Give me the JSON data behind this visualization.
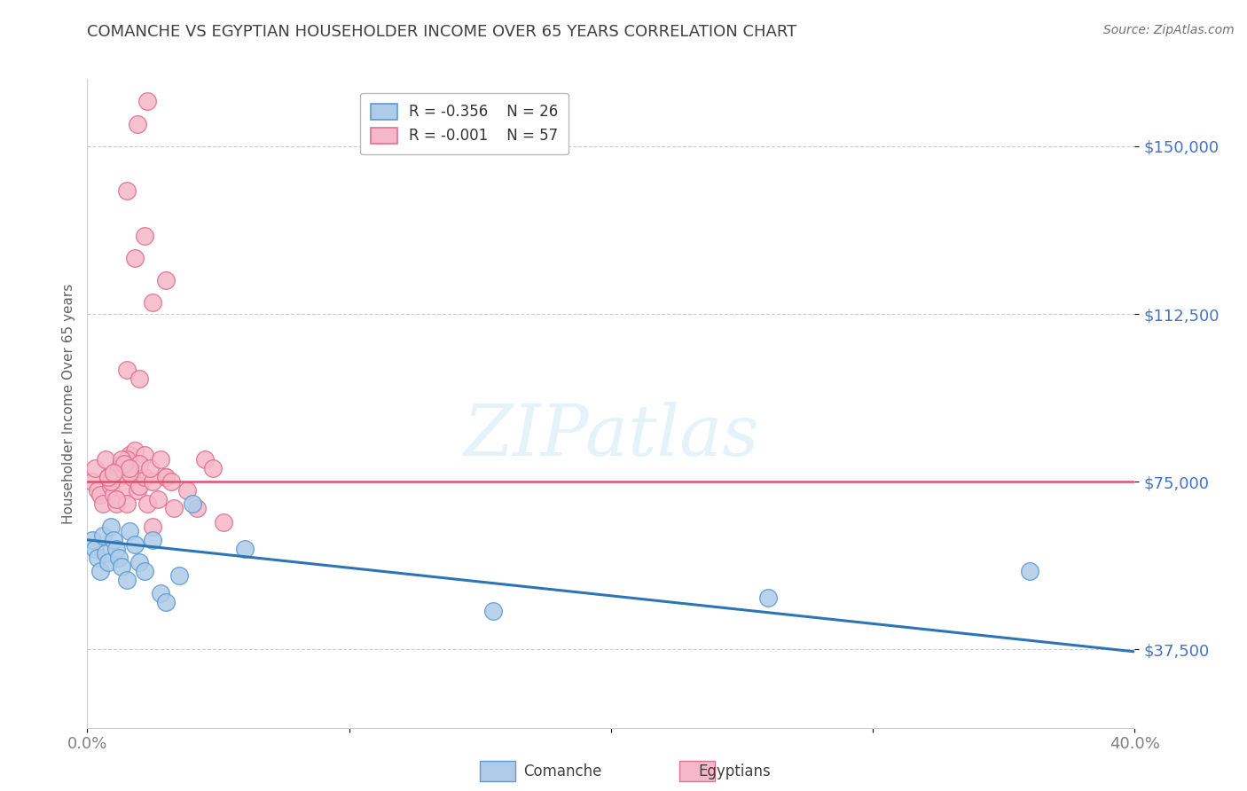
{
  "title": "COMANCHE VS EGYPTIAN HOUSEHOLDER INCOME OVER 65 YEARS CORRELATION CHART",
  "source": "Source: ZipAtlas.com",
  "ylabel": "Householder Income Over 65 years",
  "xlim": [
    0.0,
    0.4
  ],
  "ylim": [
    20000,
    165000
  ],
  "yticks": [
    37500,
    75000,
    112500,
    150000
  ],
  "ytick_labels": [
    "$37,500",
    "$75,000",
    "$112,500",
    "$150,000"
  ],
  "xticks": [
    0.0,
    0.1,
    0.2,
    0.3,
    0.4
  ],
  "xtick_labels": [
    "0.0%",
    "",
    "",
    "",
    "40.0%"
  ],
  "background_color": "#ffffff",
  "grid_color": "#cccccc",
  "comanche_color": "#aecce8",
  "egyptian_color": "#f5b8c8",
  "comanche_edge": "#5b9bd5",
  "egyptian_edge": "#e07090",
  "trend_comanche_color": "#2e75b6",
  "trend_egyptian_color": "#e05070",
  "title_color": "#404040",
  "axis_label_color": "#606060",
  "ytick_color": "#4472c4",
  "xtick_color": "#808080",
  "watermark_text": "ZIPatlas",
  "legend_r_comanche": "-0.356",
  "legend_n_comanche": "26",
  "legend_r_egyptian": "-0.001",
  "legend_n_egyptian": "57",
  "comanche_x": [
    0.002,
    0.003,
    0.004,
    0.005,
    0.006,
    0.007,
    0.008,
    0.009,
    0.01,
    0.011,
    0.012,
    0.013,
    0.015,
    0.016,
    0.018,
    0.02,
    0.022,
    0.025,
    0.028,
    0.03,
    0.035,
    0.04,
    0.06,
    0.155,
    0.26,
    0.36
  ],
  "comanche_y": [
    62000,
    60000,
    58000,
    55000,
    63000,
    59000,
    57000,
    65000,
    62000,
    60000,
    58000,
    56000,
    53000,
    64000,
    61000,
    57000,
    55000,
    62000,
    50000,
    48000,
    54000,
    70000,
    60000,
    46000,
    49000,
    55000
  ],
  "egyptian_x": [
    0.002,
    0.003,
    0.004,
    0.005,
    0.006,
    0.007,
    0.008,
    0.009,
    0.01,
    0.011,
    0.012,
    0.013,
    0.014,
    0.015,
    0.016,
    0.017,
    0.018,
    0.019,
    0.02,
    0.022,
    0.023,
    0.025,
    0.027,
    0.03,
    0.033,
    0.038,
    0.042,
    0.045,
    0.048,
    0.052,
    0.018,
    0.022,
    0.025,
    0.03,
    0.015,
    0.02,
    0.012,
    0.016,
    0.009,
    0.011,
    0.008,
    0.013,
    0.014,
    0.016,
    0.01,
    0.024,
    0.028,
    0.032,
    0.015,
    0.02,
    0.025,
    0.03,
    0.018,
    0.022,
    0.015,
    0.019,
    0.023
  ],
  "egyptian_y": [
    75000,
    78000,
    73000,
    72000,
    70000,
    80000,
    76000,
    74000,
    72000,
    70000,
    76000,
    79000,
    73000,
    70000,
    81000,
    76000,
    77000,
    73000,
    74000,
    76000,
    70000,
    65000,
    71000,
    76000,
    69000,
    73000,
    69000,
    80000,
    78000,
    66000,
    82000,
    81000,
    75000,
    76000,
    80000,
    79000,
    78000,
    77000,
    75000,
    71000,
    76000,
    80000,
    79000,
    78000,
    77000,
    78000,
    80000,
    75000,
    100000,
    98000,
    115000,
    120000,
    125000,
    130000,
    140000,
    155000,
    160000
  ]
}
